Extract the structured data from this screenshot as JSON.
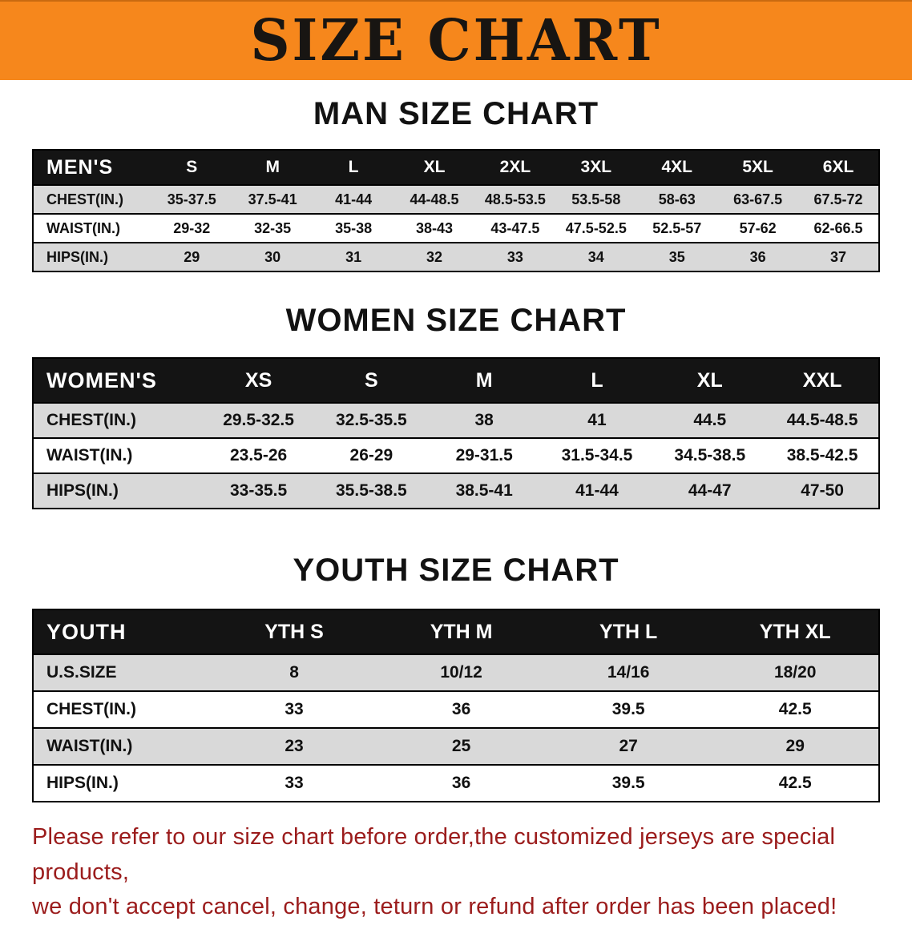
{
  "banner": {
    "title": "SIZE CHART"
  },
  "sections": [
    {
      "id": "mens",
      "title": "MAN SIZE CHART",
      "table": {
        "header": [
          "MEN'S",
          "S",
          "M",
          "L",
          "XL",
          "2XL",
          "3XL",
          "4XL",
          "5XL",
          "6XL"
        ],
        "rows": [
          [
            "CHEST(IN.)",
            "35-37.5",
            "37.5-41",
            "41-44",
            "44-48.5",
            "48.5-53.5",
            "53.5-58",
            "58-63",
            "63-67.5",
            "67.5-72"
          ],
          [
            "WAIST(IN.)",
            "29-32",
            "32-35",
            "35-38",
            "38-43",
            "43-47.5",
            "47.5-52.5",
            "52.5-57",
            "57-62",
            "62-66.5"
          ],
          [
            "HIPS(IN.)",
            "29",
            "30",
            "31",
            "32",
            "33",
            "34",
            "35",
            "36",
            "37"
          ]
        ]
      }
    },
    {
      "id": "womens",
      "title": "WOMEN SIZE CHART",
      "table": {
        "header": [
          "WOMEN'S",
          "XS",
          "S",
          "M",
          "L",
          "XL",
          "XXL"
        ],
        "rows": [
          [
            "CHEST(IN.)",
            "29.5-32.5",
            "32.5-35.5",
            "38",
            "41",
            "44.5",
            "44.5-48.5"
          ],
          [
            "WAIST(IN.)",
            "23.5-26",
            "26-29",
            "29-31.5",
            "31.5-34.5",
            "34.5-38.5",
            "38.5-42.5"
          ],
          [
            "HIPS(IN.)",
            "33-35.5",
            "35.5-38.5",
            "38.5-41",
            "41-44",
            "44-47",
            "47-50"
          ]
        ]
      }
    },
    {
      "id": "youth",
      "title": "YOUTH SIZE CHART",
      "table": {
        "header": [
          "YOUTH",
          "YTH S",
          "YTH M",
          "YTH L",
          "YTH XL"
        ],
        "rows": [
          [
            "U.S.SIZE",
            "8",
            "10/12",
            "14/16",
            "18/20"
          ],
          [
            "CHEST(IN.)",
            "33",
            "36",
            "39.5",
            "42.5"
          ],
          [
            "WAIST(IN.)",
            "23",
            "25",
            "27",
            "29"
          ],
          [
            "HIPS(IN.)",
            "33",
            "36",
            "39.5",
            "42.5"
          ]
        ]
      }
    }
  ],
  "footer": {
    "line1": "Please refer to our size chart before order,the customized jerseys are special products,",
    "line2": "we don't accept cancel, change, teturn or refund after order has been placed!"
  },
  "colors": {
    "banner_bg": "#F6871C",
    "table_header_bg": "#141414",
    "row_alternate": "#D9D9D9",
    "footer_text": "#9B1C1C"
  }
}
